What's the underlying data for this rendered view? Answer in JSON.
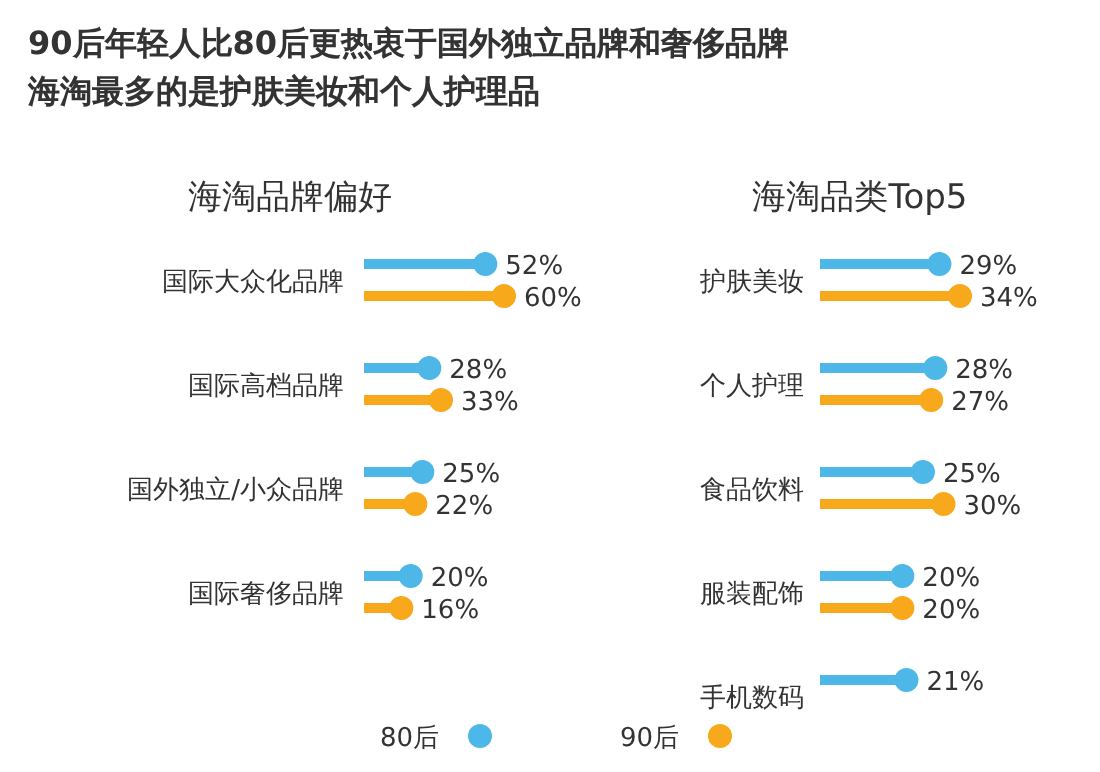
{
  "chart_data": [
    {
      "type": "other",
      "title": "90后年轻人比80后更热衷于国外独立品牌和奢侈品牌",
      "subtitle": "海淘最多的是护肤美妆和个人护理品"
    },
    {
      "type": "lollipop",
      "orientation": "horizontal",
      "title": "海淘品牌偏好",
      "categories": [
        "国际大众化品牌",
        "国际高档品牌",
        "国外独立/小众品牌",
        "国际奢侈品牌"
      ],
      "series": [
        {
          "color": "#4db8e8",
          "values": [
            52,
            28,
            25,
            20
          ],
          "value_labels": [
            "52%",
            "28%",
            "25%",
            "20%"
          ]
        },
        {
          "color": "#f7a81b",
          "values": [
            60,
            33,
            22,
            16
          ],
          "value_labels": [
            "60%",
            "33%",
            "22%",
            "16%"
          ]
        }
      ]
    },
    {
      "type": "lollipop",
      "orientation": "horizontal",
      "title": "海淘品类Top5",
      "categories": [
        "护肤美妆",
        "个人护理",
        "食品饮料",
        "服装配饰",
        "手机数码"
      ],
      "legend": "bottom",
      "series": [
        {
          "name": "80后",
          "color": "#4db8e8",
          "values": [
            29,
            28,
            25,
            20,
            21
          ],
          "value_labels": [
            "29%",
            "28%",
            "25%",
            "20%",
            "21%"
          ]
        },
        {
          "name": "90后",
          "color": "#f7a81b",
          "values": [
            34,
            27,
            30,
            20,
            null
          ],
          "value_labels": [
            "34%",
            "27%",
            "30%",
            "20%",
            null
          ]
        }
      ]
    }
  ]
}
